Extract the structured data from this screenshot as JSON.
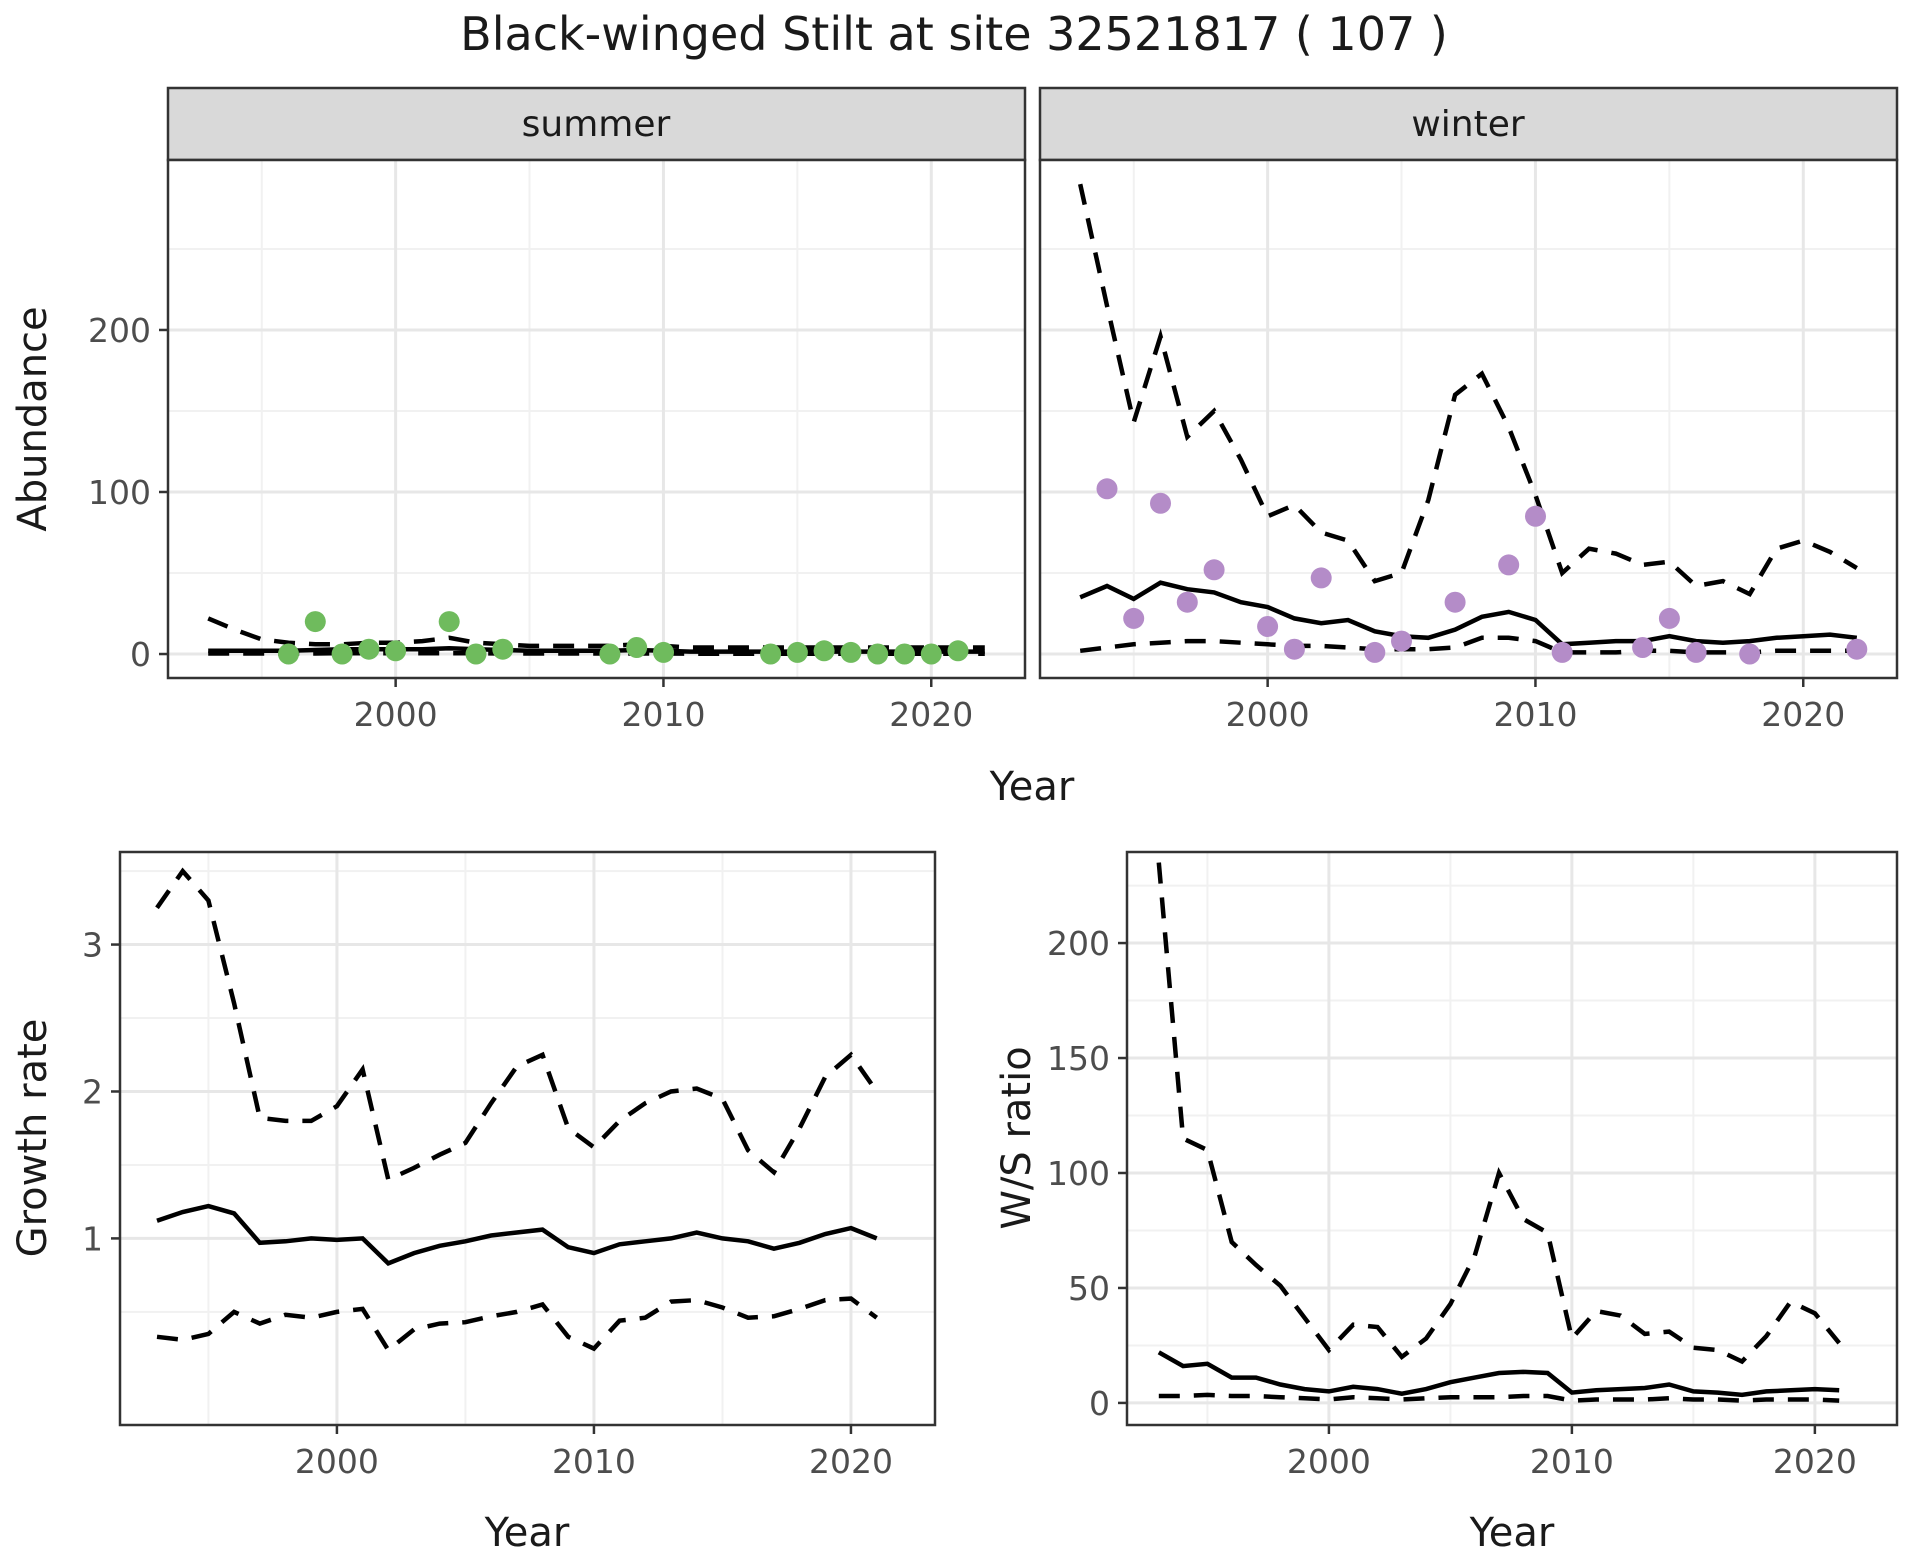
{
  "title": "Black-winged Stilt at site 32521817 ( 107 )",
  "facets": [
    {
      "label": "summer"
    },
    {
      "label": "winter"
    }
  ],
  "axis_titles": {
    "x_top": "Year",
    "x_bottom_left": "Year",
    "x_bottom_right": "Year",
    "y_abundance": "Abundance",
    "y_growth": "Growth rate",
    "y_ws": "W/S ratio"
  },
  "colors": {
    "summer_point": "#6fbb5d",
    "winter_point": "#b48cc8",
    "line": "#000000",
    "strip_bg": "#d9d9d9",
    "panel_border": "#333333",
    "grid_major": "#e7e7e7",
    "grid_minor": "#f1f1f1",
    "tick_text": "#4d4d4d"
  },
  "chart_data": [
    {
      "id": "abundance-summer",
      "type": "line",
      "facet": "summer",
      "xlabel": "Year",
      "ylabel": "Abundance",
      "x_range": [
        1991.5,
        2023.5
      ],
      "y_range": [
        -14.8,
        304.9
      ],
      "x_ticks": [
        2000,
        2010,
        2020
      ],
      "x_minor": [
        1995,
        2005,
        2015
      ],
      "y_ticks": [
        0,
        100,
        200
      ],
      "y_minor": [
        50,
        150,
        250
      ],
      "grid": true,
      "years": [
        1993,
        1994,
        1995,
        1996,
        1997,
        1998,
        1999,
        2000,
        2001,
        2002,
        2003,
        2004,
        2005,
        2006,
        2007,
        2008,
        2009,
        2010,
        2011,
        2012,
        2013,
        2014,
        2015,
        2016,
        2017,
        2018,
        2019,
        2020,
        2021,
        2022
      ],
      "series": [
        {
          "name": "upper CI",
          "style": "dashed",
          "values": [
            22,
            15,
            9,
            7,
            6,
            6,
            7,
            7,
            8,
            10,
            7,
            6,
            5,
            5,
            5,
            5,
            6,
            5,
            4,
            4,
            4,
            4,
            4,
            4,
            4,
            4,
            4,
            4,
            4,
            4
          ]
        },
        {
          "name": "mean",
          "style": "solid",
          "values": [
            2,
            2,
            2,
            2,
            2.5,
            3,
            3,
            3,
            3,
            3.5,
            3,
            2.5,
            2,
            2,
            2,
            2,
            2.5,
            2,
            1.5,
            1.5,
            1.5,
            1.5,
            1.5,
            1.5,
            1.5,
            1.5,
            1.5,
            1.5,
            1.5,
            1.5
          ]
        },
        {
          "name": "lower CI",
          "style": "dashed",
          "values": [
            0.3,
            0.3,
            0.3,
            0.3,
            0.3,
            0.5,
            0.5,
            0.5,
            0.5,
            0.5,
            0.5,
            0.3,
            0.3,
            0.3,
            0.3,
            0.3,
            0.3,
            0.3,
            0.2,
            0.2,
            0.2,
            0.2,
            0.2,
            0.2,
            0.2,
            0.2,
            0.2,
            0.2,
            0.2,
            0.2
          ]
        }
      ],
      "points": {
        "name": "observed counts",
        "color_key": "summer_point",
        "years": [
          1996,
          1997,
          1998,
          1999,
          2000,
          2002,
          2003,
          2004,
          2008,
          2009,
          2010,
          2014,
          2015,
          2016,
          2017,
          2018,
          2019,
          2020,
          2021
        ],
        "values": [
          0,
          20,
          0,
          3,
          2,
          20,
          0,
          3,
          0,
          4,
          1,
          0,
          1,
          2,
          1,
          0,
          0,
          0,
          2
        ]
      }
    },
    {
      "id": "abundance-winter",
      "type": "line",
      "facet": "winter",
      "xlabel": "Year",
      "ylabel": "Abundance",
      "x_range": [
        1991.5,
        2023.5
      ],
      "y_range": [
        -14.8,
        304.9
      ],
      "x_ticks": [
        2000,
        2010,
        2020
      ],
      "x_minor": [
        1995,
        2005,
        2015
      ],
      "y_ticks": [
        0,
        100,
        200
      ],
      "y_minor": [
        50,
        150,
        250
      ],
      "grid": true,
      "years": [
        1993,
        1994,
        1995,
        1996,
        1997,
        1998,
        1999,
        2000,
        2001,
        2002,
        2003,
        2004,
        2005,
        2006,
        2007,
        2008,
        2009,
        2010,
        2011,
        2012,
        2013,
        2014,
        2015,
        2016,
        2017,
        2018,
        2019,
        2020,
        2021,
        2022
      ],
      "series": [
        {
          "name": "upper CI",
          "style": "dashed",
          "values": [
            290,
            215,
            143,
            196,
            134,
            150,
            120,
            85,
            92,
            75,
            70,
            45,
            50,
            95,
            160,
            173,
            140,
            98,
            50,
            65,
            62,
            55,
            57,
            42,
            45,
            37,
            65,
            70,
            63,
            53
          ]
        },
        {
          "name": "mean",
          "style": "solid",
          "values": [
            35,
            42,
            34,
            44,
            40,
            38,
            32,
            29,
            22,
            19,
            21,
            14,
            11,
            10,
            15,
            23,
            26,
            21,
            6,
            7,
            8,
            8,
            11,
            8,
            7,
            8,
            10,
            11,
            12,
            10
          ]
        },
        {
          "name": "lower CI",
          "style": "dashed",
          "values": [
            2,
            4,
            6,
            7,
            8,
            8,
            7,
            6,
            5,
            5,
            4,
            3,
            3,
            3,
            4,
            10,
            10,
            8,
            1,
            1,
            1,
            2,
            2,
            1,
            1,
            1,
            2,
            2,
            2,
            2
          ]
        }
      ],
      "points": {
        "name": "observed counts",
        "color_key": "winter_point",
        "years": [
          1994,
          1995,
          1996,
          1997,
          1998,
          2000,
          2001,
          2002,
          2004,
          2005,
          2007,
          2009,
          2010,
          2011,
          2014,
          2015,
          2016,
          2018,
          2022
        ],
        "values": [
          102,
          22,
          93,
          32,
          52,
          17,
          3,
          47,
          1,
          8,
          32,
          55,
          85,
          1,
          4,
          22,
          1,
          0,
          3
        ]
      }
    },
    {
      "id": "growth",
      "type": "line",
      "facet": null,
      "xlabel": "Year",
      "ylabel": "Growth rate",
      "x_range": [
        1991.56,
        2023.27
      ],
      "y_range": [
        -0.27,
        3.63
      ],
      "x_ticks": [
        2000,
        2010,
        2020
      ],
      "x_minor": [
        1995,
        2005,
        2015
      ],
      "y_ticks": [
        1,
        2,
        3
      ],
      "y_minor": [
        0.5,
        1.5,
        2.5,
        3.5
      ],
      "grid": true,
      "years": [
        1993,
        1994,
        1995,
        1996,
        1997,
        1998,
        1999,
        2000,
        2001,
        2002,
        2003,
        2004,
        2005,
        2006,
        2007,
        2008,
        2009,
        2010,
        2011,
        2012,
        2013,
        2014,
        2015,
        2016,
        2017,
        2018,
        2019,
        2020,
        2021
      ],
      "series": [
        {
          "name": "upper CI",
          "style": "dashed",
          "values": [
            3.25,
            3.5,
            3.3,
            2.6,
            1.82,
            1.8,
            1.8,
            1.9,
            2.15,
            1.4,
            1.48,
            1.57,
            1.65,
            1.92,
            2.17,
            2.25,
            1.75,
            1.62,
            1.8,
            1.92,
            2.0,
            2.02,
            1.95,
            1.6,
            1.45,
            1.75,
            2.1,
            2.25,
            2.0
          ]
        },
        {
          "name": "mean",
          "style": "solid",
          "values": [
            1.12,
            1.18,
            1.22,
            1.17,
            0.97,
            0.98,
            1.0,
            0.99,
            1.0,
            0.83,
            0.9,
            0.95,
            0.98,
            1.02,
            1.04,
            1.06,
            0.94,
            0.9,
            0.96,
            0.98,
            1.0,
            1.04,
            1.0,
            0.98,
            0.93,
            0.97,
            1.03,
            1.07,
            1.0
          ]
        },
        {
          "name": "lower CI",
          "style": "dashed",
          "values": [
            0.33,
            0.31,
            0.35,
            0.5,
            0.42,
            0.48,
            0.46,
            0.5,
            0.52,
            0.24,
            0.38,
            0.42,
            0.43,
            0.47,
            0.5,
            0.55,
            0.33,
            0.25,
            0.44,
            0.46,
            0.57,
            0.58,
            0.53,
            0.46,
            0.47,
            0.52,
            0.58,
            0.59,
            0.46
          ]
        }
      ],
      "points": null
    },
    {
      "id": "ws",
      "type": "line",
      "facet": null,
      "xlabel": "Year",
      "ylabel": "W/S ratio",
      "x_range": [
        1991.69,
        2023.38
      ],
      "y_range": [
        -9.6,
        239.6
      ],
      "x_ticks": [
        2000,
        2010,
        2020
      ],
      "x_minor": [
        1995,
        2005,
        2015
      ],
      "y_ticks": [
        0,
        50,
        100,
        150,
        200
      ],
      "y_minor": [
        25,
        75,
        125,
        175,
        225
      ],
      "grid": true,
      "years": [
        1993,
        1994,
        1995,
        1996,
        1997,
        1998,
        1999,
        2000,
        2001,
        2002,
        2003,
        2004,
        2005,
        2006,
        2007,
        2008,
        2009,
        2010,
        2011,
        2012,
        2013,
        2014,
        2015,
        2016,
        2017,
        2018,
        2019,
        2020,
        2021
      ],
      "series": [
        {
          "name": "upper CI",
          "style": "dashed",
          "values": [
            235,
            115,
            110,
            70,
            60,
            51,
            37,
            23,
            34,
            33,
            20,
            28,
            43,
            64,
            100,
            80,
            74,
            28,
            40,
            38,
            30,
            31,
            24,
            23,
            18,
            29,
            44,
            39,
            26
          ]
        },
        {
          "name": "mean",
          "style": "solid",
          "values": [
            22,
            16,
            17,
            11,
            11,
            8,
            6,
            5,
            7,
            6,
            4,
            6,
            9,
            11,
            13,
            13.5,
            13,
            4.5,
            5.5,
            6,
            6.5,
            8,
            5,
            4.5,
            3.5,
            5,
            5.5,
            6,
            5.5
          ]
        },
        {
          "name": "lower CI",
          "style": "dashed",
          "values": [
            3,
            3,
            3.5,
            3,
            3,
            2.5,
            2,
            1.5,
            2.5,
            2,
            1.5,
            2,
            2.5,
            2.5,
            2.5,
            3,
            3,
            1,
            1.5,
            1.5,
            1.5,
            2,
            1.5,
            1.5,
            1,
            1.5,
            1.5,
            1.5,
            1
          ]
        }
      ],
      "points": null
    }
  ]
}
